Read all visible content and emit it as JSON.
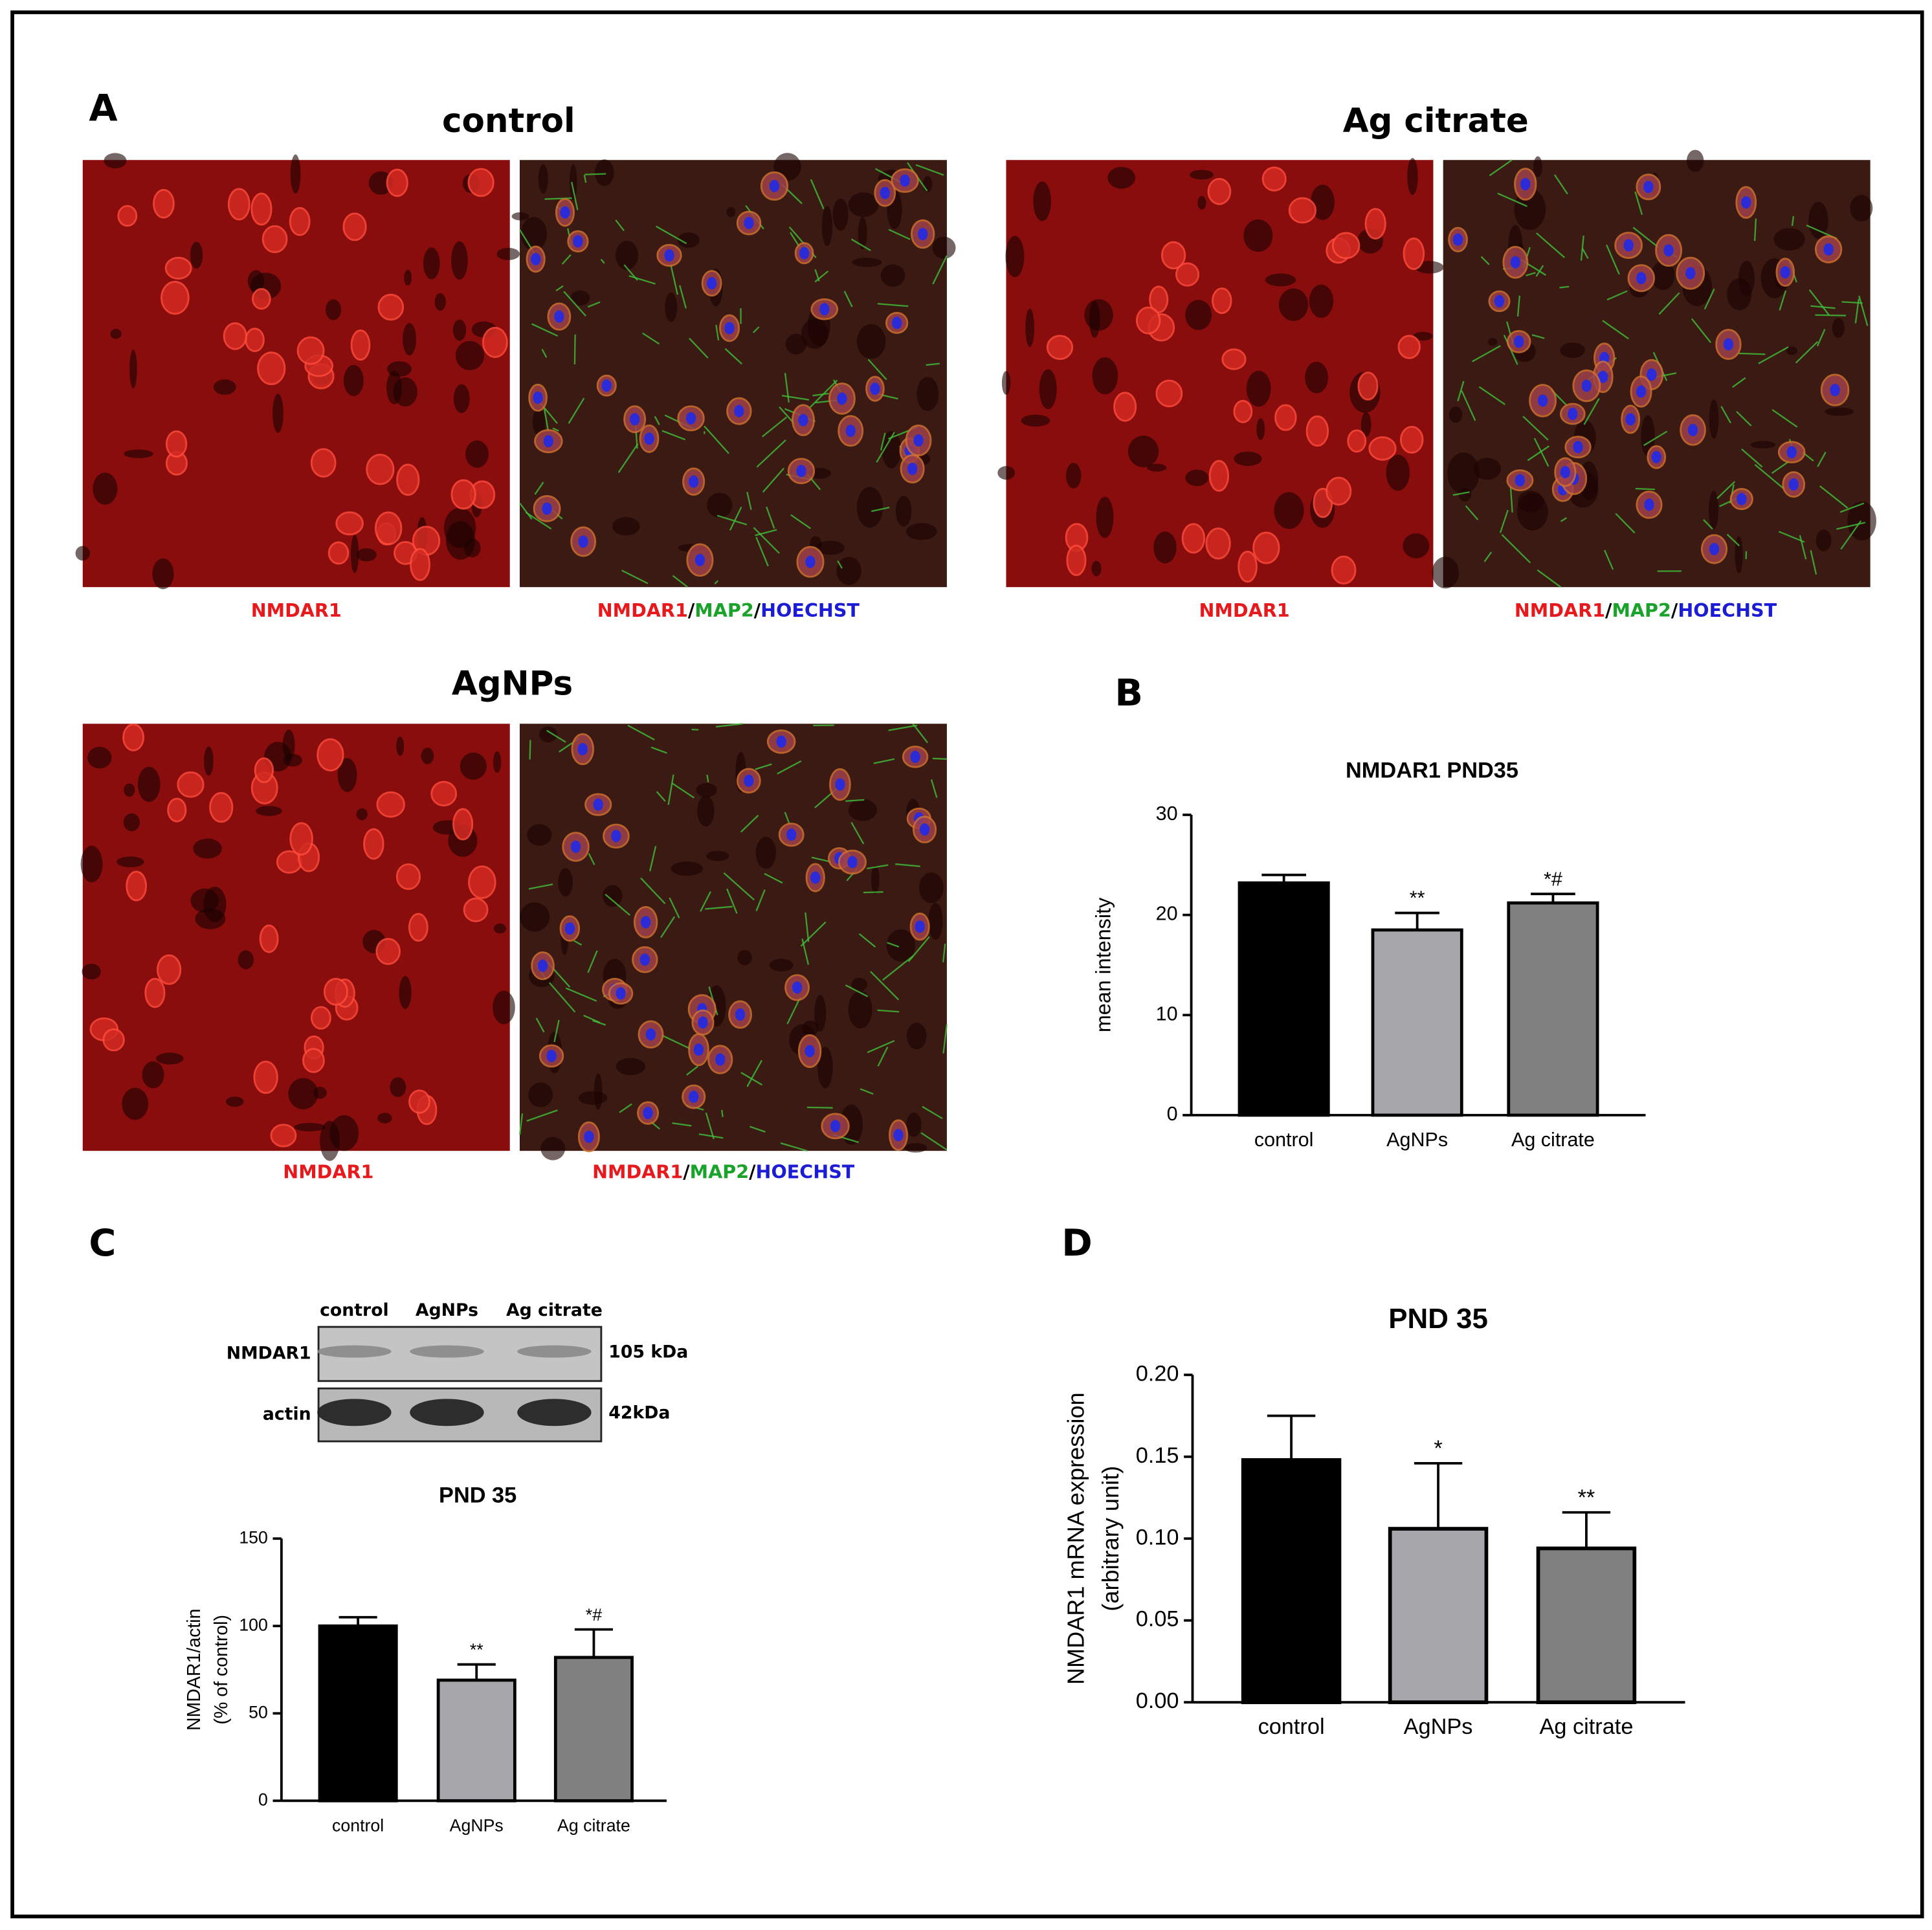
{
  "panel_labels": [
    "A",
    "B",
    "C",
    "D"
  ],
  "microscopy": [
    {
      "title": "control",
      "captions": [
        {
          "parts": [
            "NMDAR1"
          ],
          "colors": [
            "#e8191c"
          ]
        },
        {
          "parts": [
            "NMDAR1",
            "/",
            "MAP2",
            "/",
            "HOECHST"
          ],
          "colors": [
            "#e8191c",
            "#000000",
            "#1aa32a",
            "#000000",
            "#1c1cd6"
          ]
        }
      ]
    },
    {
      "title": "Ag citrate",
      "captions": [
        {
          "parts": [
            "NMDAR1"
          ],
          "colors": [
            "#e8191c"
          ]
        },
        {
          "parts": [
            "NMDAR1",
            "/",
            "MAP2",
            "/",
            "HOECHST"
          ],
          "colors": [
            "#e8191c",
            "#000000",
            "#1aa32a",
            "#000000",
            "#1c1cd6"
          ]
        }
      ]
    },
    {
      "title": "AgNPs",
      "captions": [
        {
          "parts": [
            "NMDAR1"
          ],
          "colors": [
            "#e8191c"
          ]
        },
        {
          "parts": [
            "NMDAR1",
            "/",
            "MAP2",
            "/",
            "HOECHST"
          ],
          "colors": [
            "#e8191c",
            "#000000",
            "#1aa32a",
            "#000000",
            "#1c1cd6"
          ]
        }
      ]
    }
  ],
  "western_blot": {
    "lanes": [
      "control",
      "AgNPs",
      "Ag citrate"
    ],
    "rows": [
      {
        "protein": "NMDAR1",
        "size": "105 kDa"
      },
      {
        "protein": "actin",
        "size": "42kDa"
      }
    ]
  },
  "chart_data": [
    {
      "type": "bar",
      "title": "NMDAR1 PND35",
      "ylabel": [
        "mean intensity"
      ],
      "categories": [
        "control",
        "AgNPs",
        "Ag citrate"
      ],
      "values": [
        23.2,
        18.5,
        21.2
      ],
      "errors": [
        0.8,
        1.7,
        0.9
      ],
      "annotations": [
        null,
        "**",
        "*#"
      ],
      "colors": [
        "#000000",
        "#a6a6ab",
        "#808080"
      ],
      "ylim": [
        0,
        30
      ],
      "yticks": [
        0,
        10,
        20,
        30
      ],
      "grid": false
    },
    {
      "type": "bar",
      "title": "PND 35",
      "ylabel": [
        "NMDAR1/actin",
        "(% of control)"
      ],
      "categories": [
        "control",
        "AgNPs",
        "Ag citrate"
      ],
      "values": [
        100,
        69,
        82
      ],
      "errors": [
        5,
        9,
        16
      ],
      "annotations": [
        null,
        "**",
        "*#"
      ],
      "colors": [
        "#000000",
        "#a6a6ab",
        "#808080"
      ],
      "ylim": [
        0,
        150
      ],
      "yticks": [
        0,
        50,
        100,
        150
      ],
      "grid": false
    },
    {
      "type": "bar",
      "title": "PND 35",
      "ylabel": [
        "NMDAR1 mRNA expression",
        "(arbitrary unit)"
      ],
      "categories": [
        "control",
        "AgNPs",
        "Ag citrate"
      ],
      "values": [
        0.148,
        0.106,
        0.094
      ],
      "errors": [
        0.027,
        0.04,
        0.022
      ],
      "annotations": [
        null,
        "*",
        "**"
      ],
      "colors": [
        "#000000",
        "#a6a6ab",
        "#808080"
      ],
      "ylim": [
        0,
        0.2
      ],
      "yticks": [
        {
          "value": 0,
          "label": "0.00"
        },
        {
          "value": 0.05,
          "label": "0.05"
        },
        {
          "value": 0.1,
          "label": "0.10"
        },
        {
          "value": 0.15,
          "label": "0.15"
        },
        {
          "value": 0.2,
          "label": "0.20"
        }
      ],
      "grid": false
    }
  ]
}
